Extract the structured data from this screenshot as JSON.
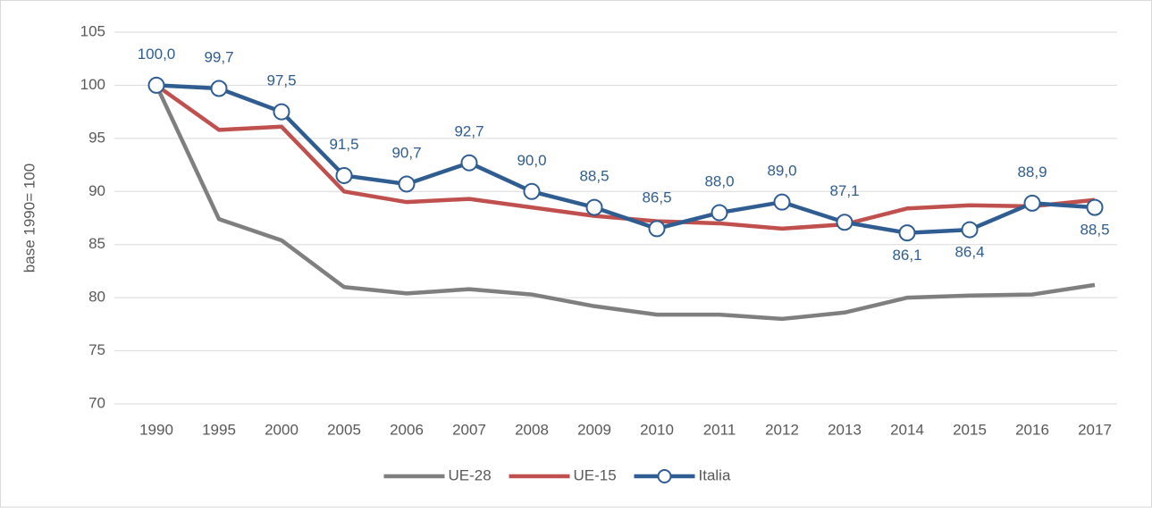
{
  "chart_data": {
    "type": "line",
    "y_label": "base 1990= 100",
    "categories": [
      "1990",
      "1995",
      "2000",
      "2005",
      "2006",
      "2007",
      "2008",
      "2009",
      "2010",
      "2011",
      "2012",
      "2013",
      "2014",
      "2015",
      "2016",
      "2017"
    ],
    "series": [
      {
        "name": "UE-28",
        "color": "#7f7f7f",
        "values": [
          100.0,
          87.4,
          85.4,
          81.0,
          80.4,
          80.8,
          80.3,
          79.2,
          78.4,
          78.4,
          78.0,
          78.6,
          80.0,
          80.2,
          80.3,
          81.2
        ]
      },
      {
        "name": "UE-15",
        "color": "#c0504d",
        "values": [
          100.0,
          95.8,
          96.1,
          90.0,
          89.0,
          89.3,
          88.5,
          87.7,
          87.2,
          87.0,
          86.5,
          86.9,
          88.4,
          88.7,
          88.6,
          89.2
        ]
      },
      {
        "name": "Italia",
        "color": "#2f5d91",
        "markers": true,
        "values": [
          100.0,
          99.7,
          97.5,
          91.5,
          90.7,
          92.7,
          90.0,
          88.5,
          86.5,
          88.0,
          89.0,
          87.1,
          86.1,
          86.4,
          88.9,
          88.5
        ],
        "value_labels": [
          "100,0",
          "99,7",
          "97,5",
          "91,5",
          "90,7",
          "92,7",
          "90,0",
          "88,5",
          "86,5",
          "88,0",
          "89,0",
          "87,1",
          "86,1",
          "86,4",
          "88,9",
          "88,5"
        ]
      }
    ],
    "ylim": [
      70,
      105
    ],
    "yticks": [
      70,
      75,
      80,
      85,
      90,
      95,
      100,
      105
    ],
    "grid": true,
    "legend": "bottom"
  }
}
